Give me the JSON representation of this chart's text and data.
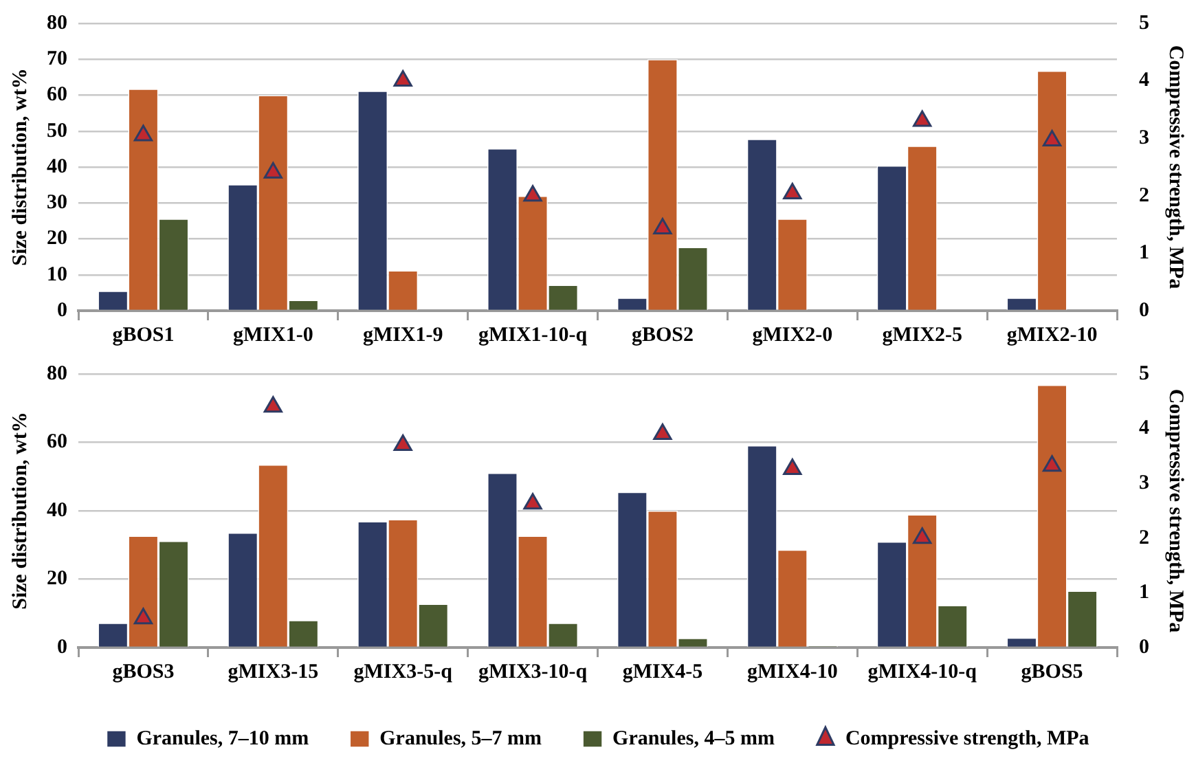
{
  "chart_data": [
    {
      "type": "bar",
      "ylabel": "Size distribution, wt%",
      "y2label": "Compressive strength, MPa",
      "categories": [
        "gBOS1",
        "gMIX1-0",
        "gMIX1-9",
        "gMIX1-10-q",
        "gBOS2",
        "gMIX2-0",
        "gMIX2-5",
        "gMIX2-10"
      ],
      "series": [
        {
          "color": "#2e3b63",
          "values": [
            5.5,
            35.2,
            61.2,
            45.2,
            3.6,
            47.8,
            40.4,
            3.6
          ]
        },
        {
          "color": "#c15f2c",
          "values": [
            61.8,
            60,
            11.2,
            32,
            70,
            25.6,
            45.9,
            66.8
          ]
        },
        {
          "color": "#4a5a30",
          "values": [
            25.6,
            3,
            null,
            7.2,
            17.7,
            null,
            null,
            null
          ]
        },
        {
          "type": "scatter",
          "axis": "y2",
          "marker": "triangle",
          "color": "#c0282f",
          "x": [
            "gBOS1",
            "gMIX1-0",
            "gMIX1-9",
            "gMIX1-10-q",
            "gBOS2",
            "gMIX2-0",
            "gMIX2-5",
            "gMIX2-10"
          ],
          "values": [
            3.05,
            2.4,
            4.0,
            2.0,
            1.43,
            2.04,
            3.3,
            2.96
          ]
        }
      ],
      "ylim": [
        0,
        80
      ],
      "yticks": [
        0,
        10,
        20,
        30,
        40,
        50,
        60,
        70,
        80
      ],
      "y2lim": [
        0,
        5
      ],
      "y2ticks": [
        0,
        1,
        2,
        3,
        4,
        5
      ],
      "grid": "y",
      "legend": false
    },
    {
      "type": "bar",
      "ylabel": "Size distribution, wt%",
      "y2label": "Compressive strength, MPa",
      "categories": [
        "gBOS3",
        "gMIX3-15",
        "gMIX3-5-q",
        "gMIX3-10-q",
        "gMIX4-5",
        "gMIX4-10",
        "gMIX4-10-q",
        "gBOS5"
      ],
      "series": [
        {
          "name": "Granules, 7–10 mm",
          "color": "#2e3b63",
          "values": [
            7.2,
            33.6,
            36.9,
            51.1,
            45.5,
            59.1,
            31,
            2.9
          ]
        },
        {
          "name": "Granules, 5–7 mm",
          "color": "#c15f2c",
          "values": [
            32.7,
            53.5,
            37.5,
            32.7,
            40,
            28.6,
            38.9,
            76.8
          ]
        },
        {
          "name": "Granules, 4–5 mm",
          "color": "#4a5a30",
          "values": [
            31.2,
            8,
            12.8,
            7.2,
            2.8,
            0.5,
            12.4,
            16.6
          ]
        },
        {
          "name": "Compressive strength, MPa",
          "type": "scatter",
          "axis": "y2",
          "marker": "triangle",
          "color": "#c0282f",
          "x": [
            "gBOS3",
            "gMIX3-15",
            "gMIX3-5-q",
            "gMIX3-10-q",
            "gMIX4-5",
            "gMIX4-10",
            "gMIX4-10-q",
            "gBOS5"
          ],
          "values": [
            0.53,
            4.4,
            3.7,
            2.63,
            3.9,
            3.26,
            2.0,
            3.32
          ]
        }
      ],
      "ylim": [
        0,
        80
      ],
      "yticks": [
        0,
        20,
        40,
        60,
        80
      ],
      "y2lim": [
        0,
        5
      ],
      "y2ticks": [
        0,
        1,
        2,
        3,
        4,
        5
      ],
      "grid": "y",
      "legend": "bottom"
    }
  ]
}
